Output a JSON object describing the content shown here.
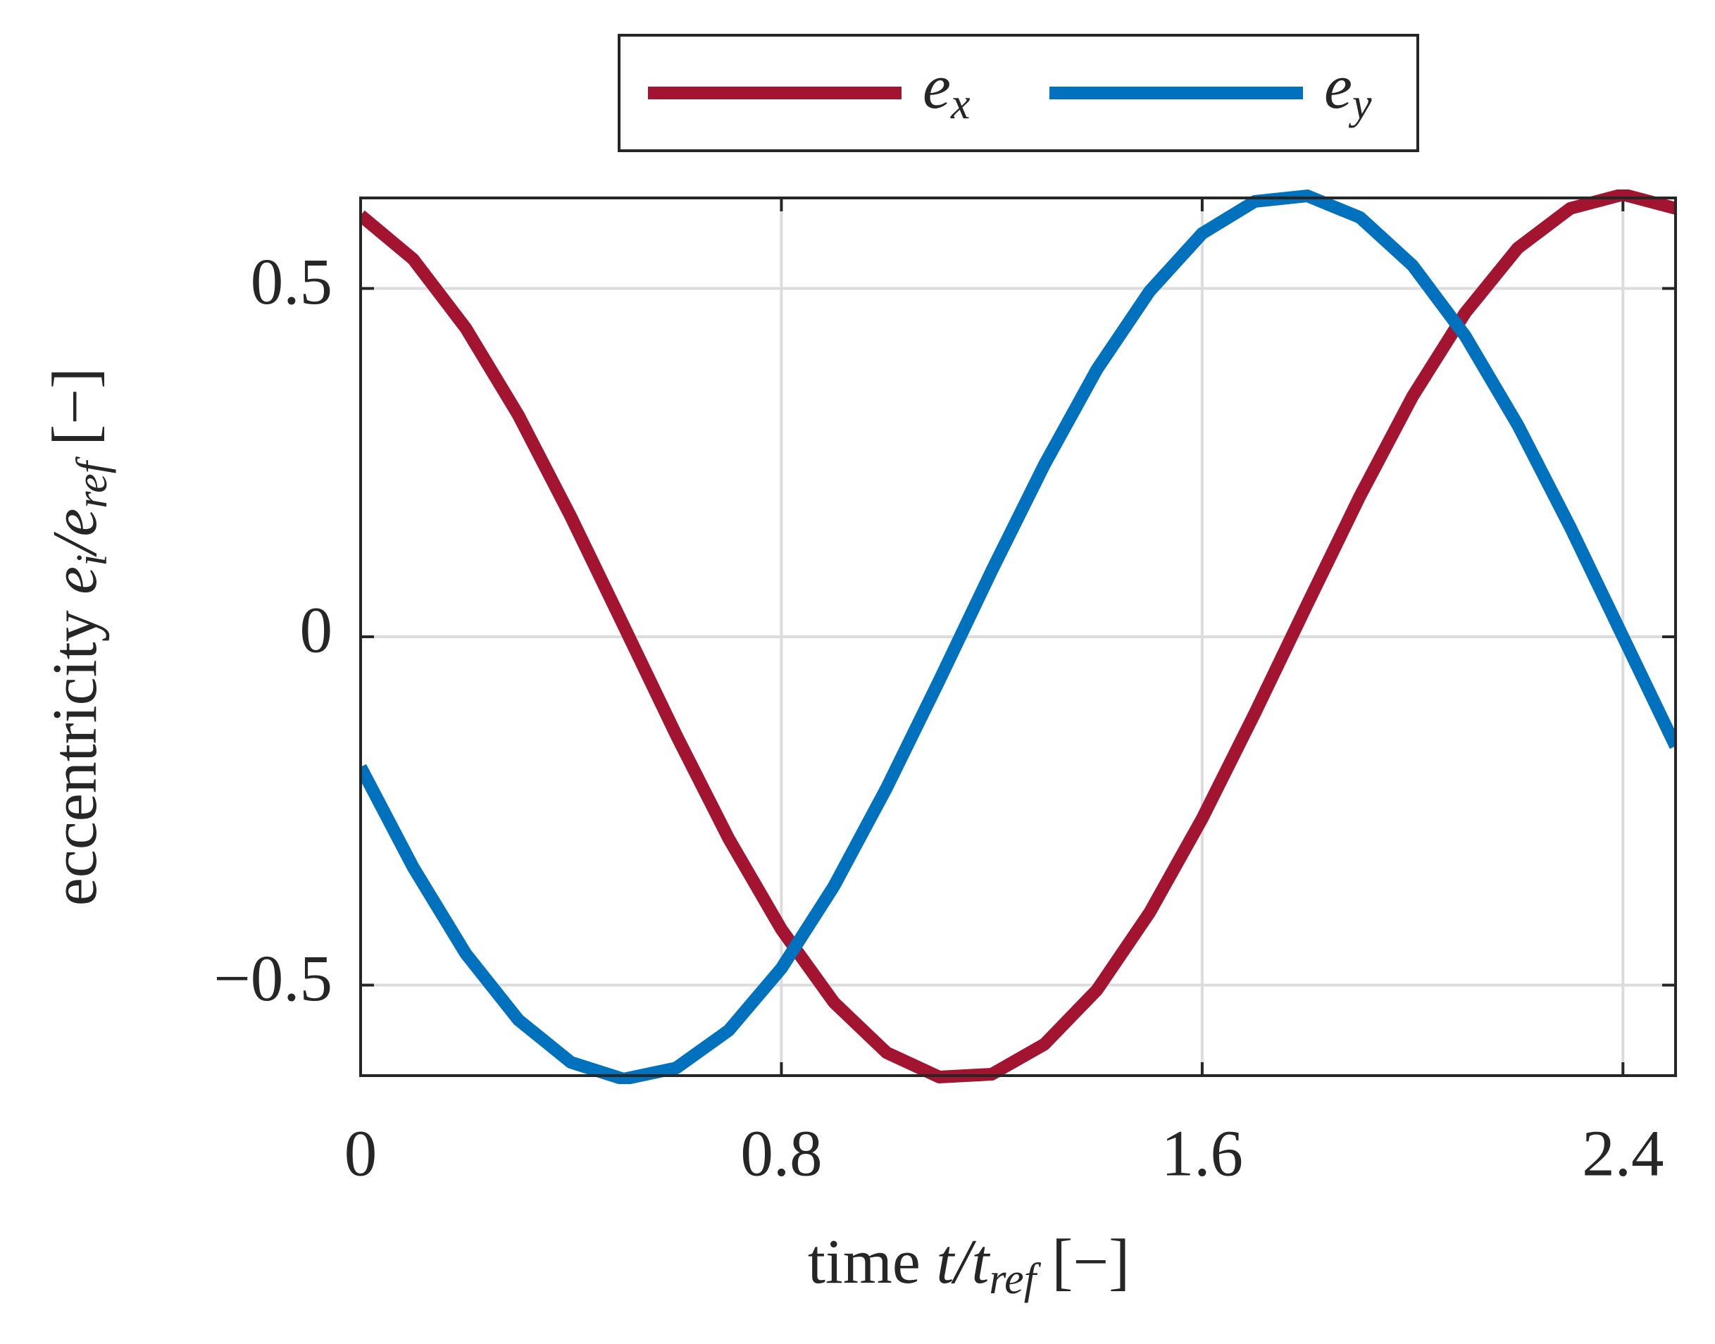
{
  "chart_data": {
    "type": "line",
    "x": [
      0,
      0.1,
      0.2,
      0.3,
      0.4,
      0.5,
      0.6,
      0.7,
      0.8,
      0.9,
      1.0,
      1.1,
      1.2,
      1.3,
      1.4,
      1.5,
      1.6,
      1.7,
      1.8,
      1.9,
      2.0,
      2.1,
      2.2,
      2.3,
      2.4,
      2.5
    ],
    "series": [
      {
        "name": "e",
        "subscript": "x",
        "color": "#a2142f",
        "values": [
          0.605,
          0.542,
          0.443,
          0.318,
          0.172,
          0.016,
          -0.141,
          -0.29,
          -0.42,
          -0.525,
          -0.597,
          -0.632,
          -0.628,
          -0.585,
          -0.507,
          -0.396,
          -0.261,
          -0.11,
          0.047,
          0.202,
          0.345,
          0.465,
          0.558,
          0.615,
          0.635,
          0.615
        ]
      },
      {
        "name": "e",
        "subscript": "y",
        "color": "#0072bd",
        "values": [
          -0.187,
          -0.331,
          -0.455,
          -0.55,
          -0.611,
          -0.635,
          -0.619,
          -0.565,
          -0.476,
          -0.358,
          -0.217,
          -0.063,
          0.095,
          0.247,
          0.384,
          0.496,
          0.579,
          0.625,
          0.633,
          0.602,
          0.533,
          0.432,
          0.304,
          0.157,
          0.0,
          -0.157
        ]
      }
    ],
    "xlim": [
      0,
      2.5
    ],
    "xticks": [
      0,
      0.8,
      1.6,
      2.4
    ],
    "ylim": [
      -0.63,
      0.63
    ],
    "yticks": [
      {
        "value": -0.5,
        "label": "−0.5"
      },
      0,
      0.5
    ],
    "grid": true,
    "legend": "top",
    "x_label": [
      {
        "text": "time "
      },
      {
        "text": "t/t",
        "italic": true
      },
      {
        "text": "ref",
        "italic": true,
        "sub": true
      },
      {
        "text": " [−]"
      }
    ],
    "y_label": [
      {
        "text": "eccentricity "
      },
      {
        "text": "e",
        "italic": true
      },
      {
        "text": "i",
        "italic": true,
        "sub": true
      },
      {
        "text": "/e",
        "italic": true
      },
      {
        "text": "ref",
        "italic": true,
        "sub": true
      },
      {
        "text": " [−]"
      }
    ]
  }
}
